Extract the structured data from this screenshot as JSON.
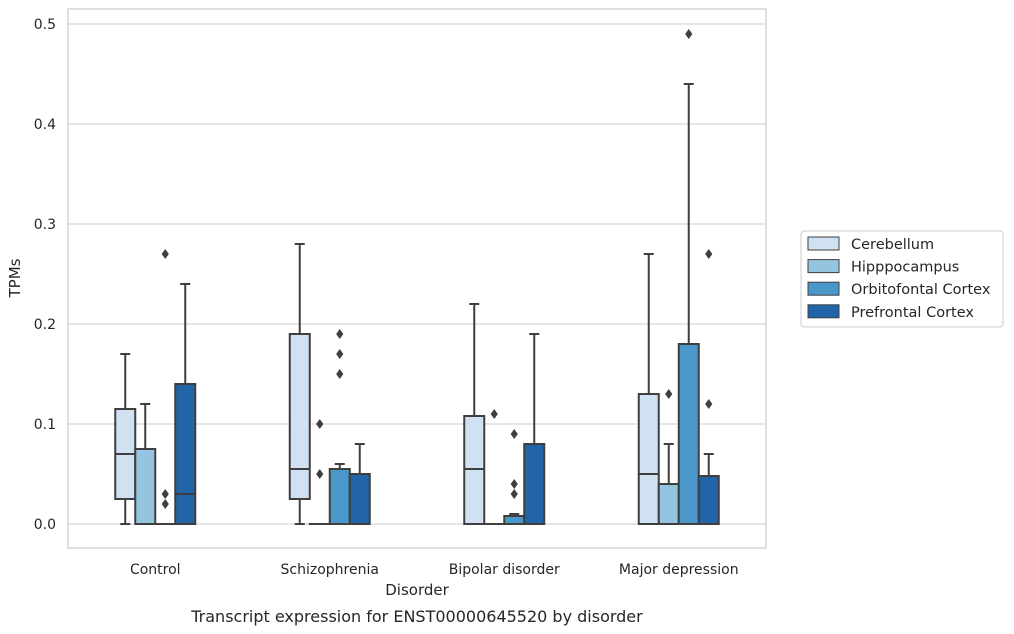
{
  "chart_data": {
    "type": "box",
    "caption": "Transcript expression for ENST00000645520 by disorder",
    "xlabel": "Disorder",
    "ylabel": "TPMs",
    "ylim": [
      -0.024,
      0.515
    ],
    "yticks": [
      0.0,
      0.1,
      0.2,
      0.3,
      0.4,
      0.5
    ],
    "grid": "horizontal",
    "legend_placement": "right-outside",
    "categories": [
      "Control",
      "Schizophrenia",
      "Bipolar disorder",
      "Major depression"
    ],
    "series": [
      {
        "name": "Cerebellum",
        "color": "#d0e1f2",
        "boxes": [
          {
            "whisker_low": 0.0,
            "q1": 0.025,
            "median": 0.07,
            "q3": 0.115,
            "whisker_high": 0.17,
            "outliers": []
          },
          {
            "whisker_low": 0.0,
            "q1": 0.025,
            "median": 0.055,
            "q3": 0.19,
            "whisker_high": 0.28,
            "outliers": []
          },
          {
            "whisker_low": 0.0,
            "q1": 0.0,
            "median": 0.055,
            "q3": 0.108,
            "whisker_high": 0.22,
            "outliers": []
          },
          {
            "whisker_low": 0.0,
            "q1": 0.0,
            "median": 0.05,
            "q3": 0.13,
            "whisker_high": 0.27,
            "outliers": []
          }
        ]
      },
      {
        "name": "Hipppocampus",
        "color": "#94c4df",
        "boxes": [
          {
            "whisker_low": 0.0,
            "q1": 0.0,
            "median": 0.0,
            "q3": 0.075,
            "whisker_high": 0.12,
            "outliers": []
          },
          {
            "whisker_low": 0.0,
            "q1": 0.0,
            "median": 0.0,
            "q3": 0.0,
            "whisker_high": 0.0,
            "outliers": [
              0.05,
              0.1
            ]
          },
          {
            "whisker_low": 0.0,
            "q1": 0.0,
            "median": 0.0,
            "q3": 0.0,
            "whisker_high": 0.0,
            "outliers": [
              0.11
            ]
          },
          {
            "whisker_low": 0.0,
            "q1": 0.0,
            "median": 0.04,
            "q3": 0.04,
            "whisker_high": 0.08,
            "outliers": [
              0.13
            ]
          }
        ]
      },
      {
        "name": "Orbitofontal Cortex",
        "color": "#4a98c9",
        "boxes": [
          {
            "whisker_low": 0.0,
            "q1": 0.0,
            "median": 0.0,
            "q3": 0.0,
            "whisker_high": 0.0,
            "outliers": [
              0.02,
              0.03,
              0.27
            ]
          },
          {
            "whisker_low": 0.0,
            "q1": 0.0,
            "median": 0.0,
            "q3": 0.055,
            "whisker_high": 0.06,
            "outliers": [
              0.15,
              0.17,
              0.19
            ]
          },
          {
            "whisker_low": 0.0,
            "q1": 0.0,
            "median": 0.0,
            "q3": 0.008,
            "whisker_high": 0.01,
            "outliers": [
              0.03,
              0.04,
              0.09
            ]
          },
          {
            "whisker_low": 0.0,
            "q1": 0.0,
            "median": 0.0,
            "q3": 0.18,
            "whisker_high": 0.44,
            "outliers": [
              0.49
            ]
          }
        ]
      },
      {
        "name": "Prefrontal Cortex",
        "color": "#2264a8",
        "boxes": [
          {
            "whisker_low": 0.0,
            "q1": 0.0,
            "median": 0.03,
            "q3": 0.14,
            "whisker_high": 0.24,
            "outliers": []
          },
          {
            "whisker_low": 0.0,
            "q1": 0.0,
            "median": 0.0,
            "q3": 0.05,
            "whisker_high": 0.08,
            "outliers": []
          },
          {
            "whisker_low": 0.0,
            "q1": 0.0,
            "median": 0.0,
            "q3": 0.08,
            "whisker_high": 0.19,
            "outliers": []
          },
          {
            "whisker_low": 0.0,
            "q1": 0.0,
            "median": 0.0,
            "q3": 0.048,
            "whisker_high": 0.07,
            "outliers": [
              0.12,
              0.27
            ]
          }
        ]
      }
    ]
  }
}
